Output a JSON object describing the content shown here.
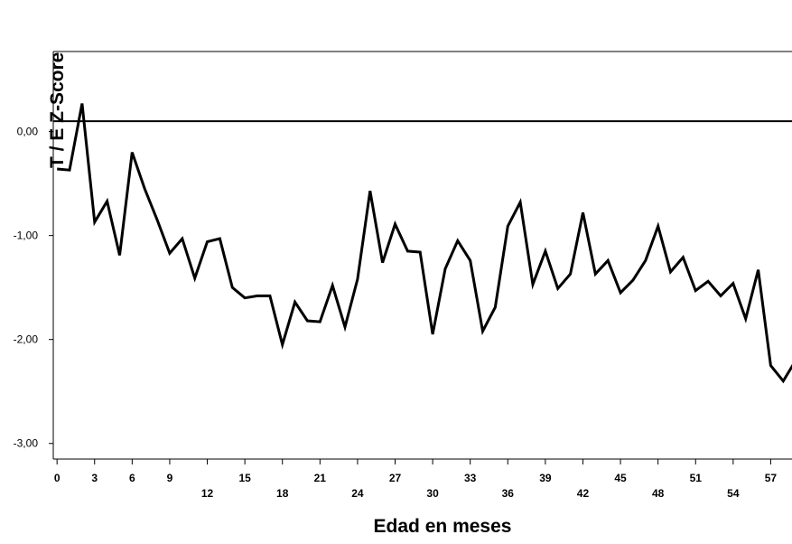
{
  "chart_data": {
    "type": "line",
    "xlabel": "Edad en meses",
    "ylabel": "T / E Z-Score",
    "yticks": [
      {
        "value": 0,
        "label": "0,00"
      },
      {
        "value": -1,
        "label": "-1,00"
      },
      {
        "value": -2,
        "label": "-2,00"
      },
      {
        "value": -3,
        "label": "-3,00"
      }
    ],
    "xticks": [
      0,
      3,
      6,
      9,
      12,
      15,
      18,
      21,
      24,
      27,
      30,
      33,
      36,
      39,
      42,
      45,
      48,
      51,
      54,
      57
    ],
    "xlim": [
      -0.3,
      58.7
    ],
    "ylim": [
      -3.15,
      0.77
    ],
    "grid": false,
    "reference_lines": [
      0.77,
      0.1
    ],
    "series": [
      {
        "x": [
          0,
          1,
          2,
          3,
          4,
          5,
          6,
          7,
          8,
          9,
          10,
          11,
          12,
          13,
          14,
          15,
          16,
          17,
          18,
          19,
          20,
          21,
          22,
          23,
          24,
          25,
          26,
          27,
          28,
          29,
          30,
          31,
          32,
          33,
          34,
          35,
          36,
          37,
          38,
          39,
          40,
          41,
          42,
          43,
          44,
          45,
          46,
          47,
          48,
          49,
          50,
          51,
          52,
          53,
          54,
          55,
          56,
          57,
          58,
          59
        ],
        "values": [
          -0.36,
          -0.37,
          0.27,
          -0.87,
          -0.67,
          -1.19,
          -0.2,
          -0.55,
          -0.85,
          -1.17,
          -1.03,
          -1.41,
          -1.06,
          -1.03,
          -1.5,
          -1.6,
          -1.58,
          -1.58,
          -2.05,
          -1.64,
          -1.82,
          -1.83,
          -1.48,
          -1.88,
          -1.42,
          -0.57,
          -1.26,
          -0.89,
          -1.15,
          -1.16,
          -1.95,
          -1.32,
          -1.05,
          -1.24,
          -1.92,
          -1.69,
          -0.91,
          -0.68,
          -1.47,
          -1.15,
          -1.51,
          -1.37,
          -0.78,
          -1.37,
          -1.24,
          -1.55,
          -1.43,
          -1.24,
          -0.91,
          -1.35,
          -1.21,
          -1.53,
          -1.44,
          -1.58,
          -1.46,
          -1.8,
          -1.33,
          -2.25,
          -2.4,
          -2.2
        ]
      }
    ]
  }
}
